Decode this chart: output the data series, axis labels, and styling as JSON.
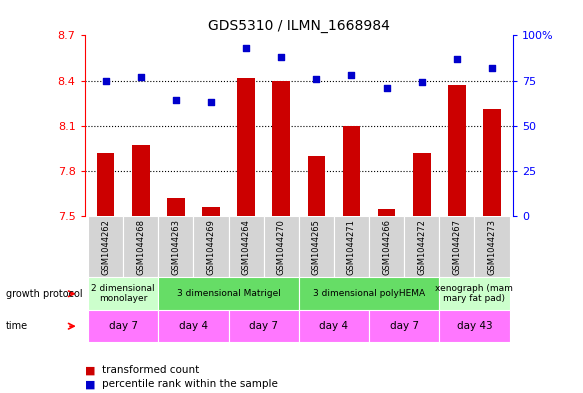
{
  "title": "GDS5310 / ILMN_1668984",
  "samples": [
    "GSM1044262",
    "GSM1044268",
    "GSM1044263",
    "GSM1044269",
    "GSM1044264",
    "GSM1044270",
    "GSM1044265",
    "GSM1044271",
    "GSM1044266",
    "GSM1044272",
    "GSM1044267",
    "GSM1044273"
  ],
  "transformed_count": [
    7.92,
    7.97,
    7.62,
    7.56,
    8.42,
    8.4,
    7.9,
    8.1,
    7.55,
    7.92,
    8.37,
    8.21
  ],
  "percentile_rank": [
    75,
    77,
    64,
    63,
    93,
    88,
    76,
    78,
    71,
    74,
    87,
    82
  ],
  "ylim_left": [
    7.5,
    8.7
  ],
  "ylim_right": [
    0,
    100
  ],
  "yticks_left": [
    7.5,
    7.8,
    8.1,
    8.4,
    8.7
  ],
  "yticks_left_labels": [
    "7.5",
    "7.8",
    "8.1",
    "8.4",
    "8.7"
  ],
  "yticks_right": [
    0,
    25,
    50,
    75,
    100
  ],
  "yticks_right_labels": [
    "0",
    "25",
    "50",
    "75",
    "100%"
  ],
  "hlines": [
    7.8,
    8.1,
    8.4
  ],
  "bar_color": "#cc0000",
  "dot_color": "#0000cc",
  "bar_width": 0.5,
  "growth_protocol_groups": [
    {
      "label": "2 dimensional\nmonolayer",
      "start": 0,
      "end": 2,
      "color": "#ccffcc"
    },
    {
      "label": "3 dimensional Matrigel",
      "start": 2,
      "end": 6,
      "color": "#66dd66"
    },
    {
      "label": "3 dimensional polyHEMA",
      "start": 6,
      "end": 10,
      "color": "#66dd66"
    },
    {
      "label": "xenograph (mam\nmary fat pad)",
      "start": 10,
      "end": 12,
      "color": "#ccffcc"
    }
  ],
  "time_groups": [
    {
      "label": "day 7",
      "start": 0,
      "end": 2
    },
    {
      "label": "day 4",
      "start": 2,
      "end": 4
    },
    {
      "label": "day 7",
      "start": 4,
      "end": 6
    },
    {
      "label": "day 4",
      "start": 6,
      "end": 8
    },
    {
      "label": "day 7",
      "start": 8,
      "end": 10
    },
    {
      "label": "day 43",
      "start": 10,
      "end": 12
    }
  ],
  "time_color": "#ff77ff",
  "legend_items": [
    {
      "label": "transformed count",
      "color": "#cc0000"
    },
    {
      "label": "percentile rank within the sample",
      "color": "#0000cc"
    }
  ],
  "figsize": [
    5.83,
    3.93
  ],
  "dpi": 100
}
